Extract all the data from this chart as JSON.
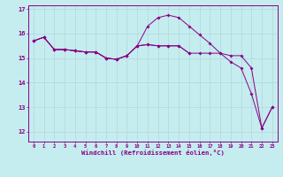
{
  "title": "",
  "xlabel": "Windchill (Refroidissement éolien,°C)",
  "bg_color": "#c5ecee",
  "line_color": "#880088",
  "grid_color": "#b0d8da",
  "x_ticks": [
    0,
    1,
    2,
    3,
    4,
    5,
    6,
    7,
    8,
    9,
    10,
    11,
    12,
    13,
    14,
    15,
    16,
    17,
    18,
    19,
    20,
    21,
    22,
    23
  ],
  "ylim": [
    11.6,
    17.15
  ],
  "xlim": [
    -0.5,
    23.5
  ],
  "series1_x": [
    0,
    1,
    2,
    3,
    4,
    5,
    6,
    7,
    8,
    9,
    10,
    11,
    12,
    13,
    14,
    15
  ],
  "series1_y": [
    15.7,
    15.85,
    15.35,
    15.35,
    15.3,
    15.25,
    15.25,
    15.0,
    14.95,
    15.1,
    15.5,
    15.55,
    15.5,
    15.5,
    15.5,
    15.2
  ],
  "series2_x": [
    0,
    1,
    2,
    3,
    4,
    5,
    6,
    7,
    8,
    9,
    10,
    11,
    12,
    13,
    14,
    15,
    16,
    17,
    18,
    19,
    20,
    21,
    22,
    23
  ],
  "series2_y": [
    15.7,
    15.85,
    15.35,
    15.35,
    15.3,
    15.25,
    15.25,
    15.0,
    14.95,
    15.1,
    15.5,
    16.3,
    16.65,
    16.75,
    16.65,
    16.3,
    15.95,
    15.6,
    15.2,
    14.85,
    14.6,
    13.55,
    12.15,
    13.0
  ],
  "series3_x": [
    0,
    1,
    2,
    3,
    4,
    5,
    6,
    7,
    8,
    9,
    10,
    11,
    12,
    13,
    14,
    15,
    16,
    17,
    18,
    19,
    20,
    21,
    22,
    23
  ],
  "series3_y": [
    15.7,
    15.85,
    15.35,
    15.35,
    15.3,
    15.25,
    15.25,
    15.0,
    14.95,
    15.1,
    15.5,
    15.55,
    15.5,
    15.5,
    15.5,
    15.2,
    15.2,
    15.2,
    15.2,
    15.1,
    15.1,
    14.6,
    12.15,
    13.0
  ],
  "yticks": [
    12,
    13,
    14,
    15,
    16,
    17
  ]
}
